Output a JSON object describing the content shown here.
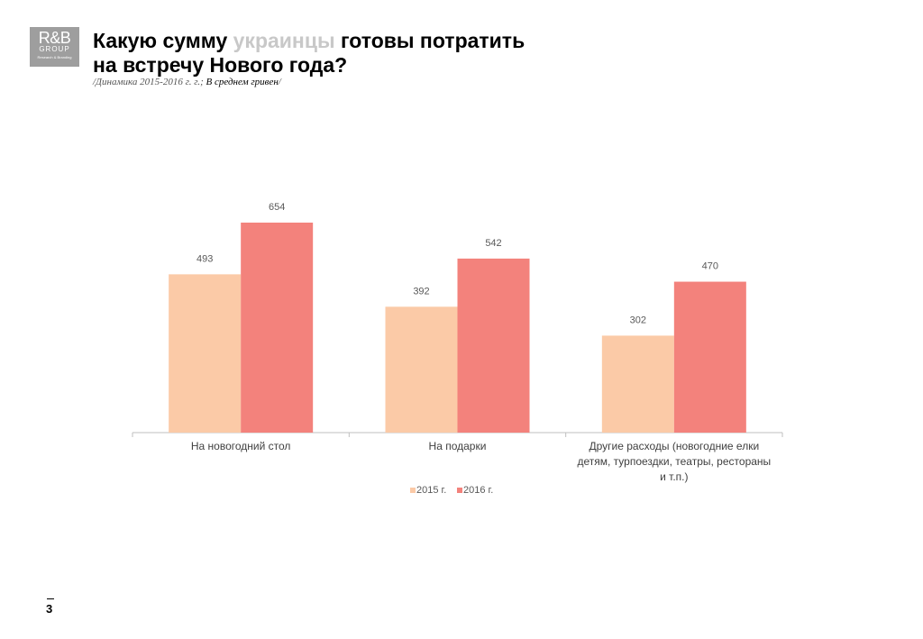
{
  "logo": {
    "main": "R&B",
    "sub": "GROUP",
    "tag": "Research & Branding"
  },
  "title": {
    "part1": "Какую сумму ",
    "highlight": "украинцы",
    "part2": " готовы потратить",
    "line2": "на встречу Нового года?"
  },
  "subtitle": {
    "main": "/Динамика 2015-2016 г. г.; ",
    "emph": "В среднем гривен",
    "end": "/"
  },
  "page_number": "3",
  "chart_data": {
    "type": "bar",
    "categories": [
      [
        "На новогодний стол"
      ],
      [
        "На подарки"
      ],
      [
        "Другие расходы (новогодние елки",
        "детям, турпоездки, театры, рестораны",
        "и т.п.)"
      ]
    ],
    "series": [
      {
        "name": "2015 г.",
        "color": "#fbcaa7",
        "values": [
          493,
          392,
          302
        ]
      },
      {
        "name": "2016 г.",
        "color": "#f3827c",
        "values": [
          654,
          542,
          470
        ]
      }
    ],
    "ylim": [
      0,
      700
    ],
    "grid": false,
    "legend": "bottom"
  }
}
